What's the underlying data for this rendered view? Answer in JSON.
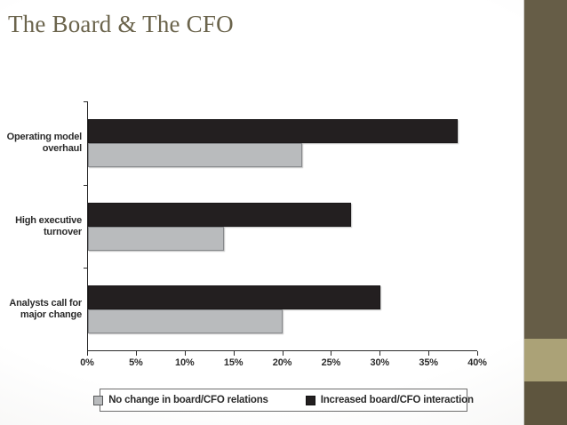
{
  "slide": {
    "title": "The Board & The CFO",
    "title_color": "#6b644c",
    "accent_band": {
      "color": "#665d47",
      "light_block_color": "#aba277",
      "bottom_block_color": "#5e553e"
    }
  },
  "chart_data": {
    "type": "bar",
    "orientation": "horizontal",
    "title": "",
    "categories": [
      "Operating model overhaul",
      "High executive turnover",
      "Analysts call for major change"
    ],
    "category_lines": [
      [
        "Operating model",
        "overhaul"
      ],
      [
        "High executive",
        "turnover"
      ],
      [
        "Analysts call for",
        "major change"
      ]
    ],
    "series": [
      {
        "name": "Increased board/CFO interaction",
        "color": "#231f20",
        "values": [
          38,
          27,
          30
        ]
      },
      {
        "name": "No change in board/CFO relations",
        "color": "#b9bbbd",
        "values": [
          22,
          14,
          20
        ]
      }
    ],
    "xlim": [
      0,
      40
    ],
    "x_tick_step": 5,
    "x_ticks": [
      "0%",
      "5%",
      "10%",
      "15%",
      "20%",
      "25%",
      "30%",
      "35%",
      "40%"
    ],
    "grid": false,
    "legend": {
      "position": "bottom",
      "items": [
        {
          "label": "No change in board/CFO relations",
          "color": "#b9bbbd"
        },
        {
          "label": "Increased board/CFO interaction",
          "color": "#231f20"
        }
      ]
    }
  }
}
